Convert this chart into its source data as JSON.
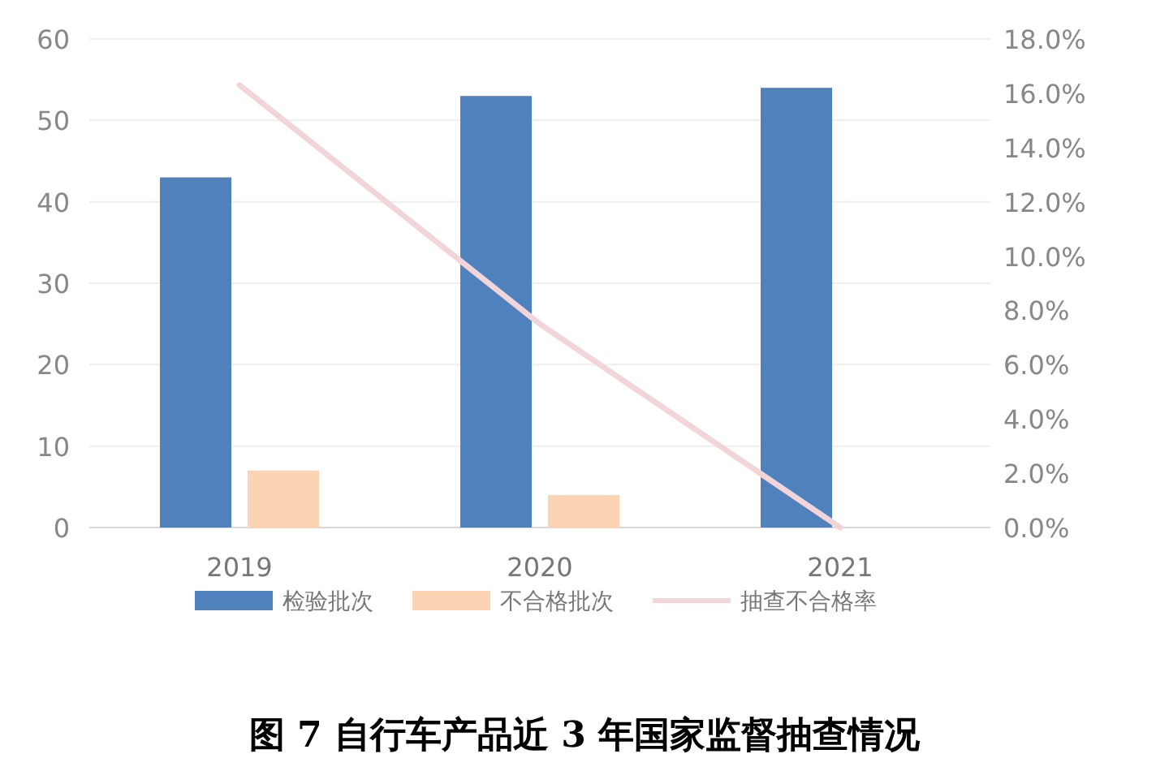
{
  "chart_data": {
    "type": "bar",
    "title": "图 7  自行车产品近 3 年国家监督抽查情况",
    "categories": [
      "2019",
      "2020",
      "2021"
    ],
    "series": [
      {
        "name": "检验批次",
        "color": "#4f81bd",
        "values": [
          43,
          53,
          54
        ]
      },
      {
        "name": "不合格批次",
        "color": "#fbd4b4",
        "values": [
          7,
          4,
          0
        ]
      },
      {
        "name": "抽查不合格率",
        "color": "#f2d5d9",
        "type": "line",
        "axis": "y2",
        "values": [
          16.3,
          7.5,
          0
        ]
      }
    ],
    "ylim": [
      0,
      60
    ],
    "yticks": [
      0,
      10,
      20,
      30,
      40,
      50,
      60
    ],
    "y2lim": [
      0,
      18
    ],
    "y2ticks": [
      {
        "value": 0,
        "label": "0.0%"
      },
      {
        "value": 2,
        "label": "2.0%"
      },
      {
        "value": 4,
        "label": "4.0%"
      },
      {
        "value": 6,
        "label": "6.0%"
      },
      {
        "value": 8,
        "label": "8.0%"
      },
      {
        "value": 10,
        "label": "10.0%"
      },
      {
        "value": 12,
        "label": "12.0%"
      },
      {
        "value": 14,
        "label": "14.0%"
      },
      {
        "value": 16,
        "label": "16.0%"
      },
      {
        "value": 18,
        "label": "18.0%"
      }
    ],
    "grid": "y",
    "legend": "bottom",
    "marker": "none",
    "line_style": "solid"
  }
}
